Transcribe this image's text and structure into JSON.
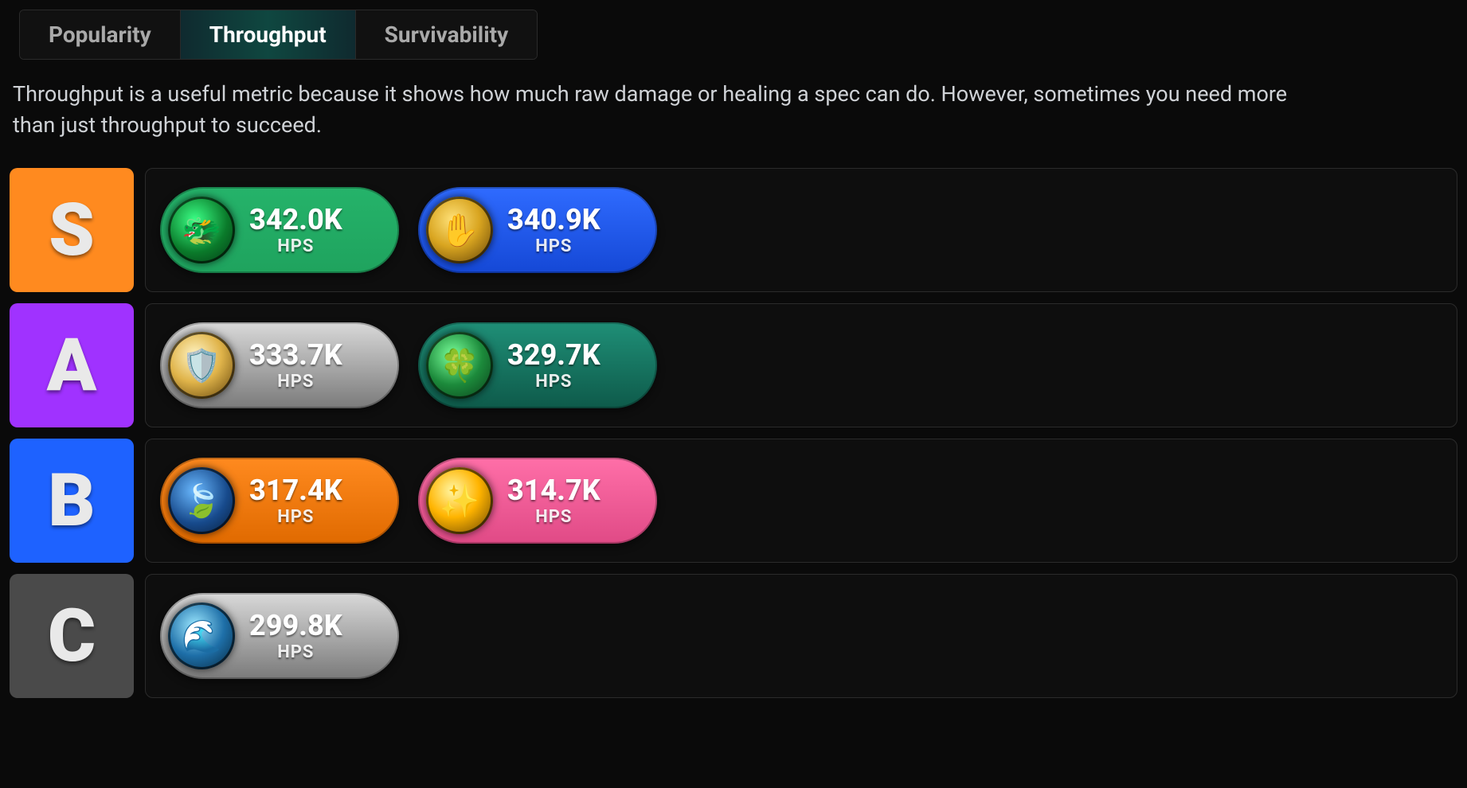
{
  "tabs": [
    {
      "label": "Popularity",
      "active": false
    },
    {
      "label": "Throughput",
      "active": true
    },
    {
      "label": "Survivability",
      "active": false
    }
  ],
  "description": "Throughput is a useful metric because it shows how much raw damage or healing a spec can do. However, sometimes you need more than just throughput to succeed.",
  "unit_label": "HPS",
  "tier_styles": {
    "S": {
      "bg": "#ff8a1f"
    },
    "A": {
      "bg": "#a032ff"
    },
    "B": {
      "bg": "#1e62ff"
    },
    "C": {
      "bg": "#4a4a4a"
    }
  },
  "tiers": [
    {
      "label": "S",
      "specs": [
        {
          "name": "preservation-evoker",
          "value": "342.0K",
          "pill_gradient": [
            "#25b36a",
            "#1fa35e"
          ],
          "icon_bg": "radial-gradient(circle at 40% 35%, #3bff86 0%, #0a7a2a 55%, #053414 100%)",
          "icon_glyph": "🐲"
        },
        {
          "name": "holy-paladin",
          "value": "340.9K",
          "pill_gradient": [
            "#2f6bff",
            "#1548d6"
          ],
          "icon_bg": "radial-gradient(circle at 40% 35%, #ffe27a 0%, #d9a520 45%, #5a3b05 100%)",
          "icon_glyph": "✋"
        }
      ]
    },
    {
      "label": "A",
      "specs": [
        {
          "name": "discipline-priest",
          "value": "333.7K",
          "pill_gradient": [
            "#d9d9d9",
            "#7a7a7a"
          ],
          "icon_bg": "radial-gradient(circle at 40% 35%, #fff4c4 0%, #e0b44a 45%, #5a3b05 100%)",
          "icon_glyph": "🛡️"
        },
        {
          "name": "mistweaver-monk",
          "value": "329.7K",
          "pill_gradient": [
            "#1f8f77",
            "#0e5a4a"
          ],
          "icon_bg": "radial-gradient(circle at 40% 35%, #7aff9a 0%, #1c8a3b 50%, #0a3b18 100%)",
          "icon_glyph": "🍀"
        }
      ]
    },
    {
      "label": "B",
      "specs": [
        {
          "name": "restoration-druid",
          "value": "317.4K",
          "pill_gradient": [
            "#ff8a1f",
            "#e06a00"
          ],
          "icon_bg": "radial-gradient(circle at 40% 35%, #6ab9ff 0%, #174a8c 55%, #071a33 100%)",
          "icon_glyph": "🍃"
        },
        {
          "name": "holy-priest",
          "value": "314.7K",
          "pill_gradient": [
            "#ff6fa8",
            "#e04a86"
          ],
          "icon_bg": "radial-gradient(circle at 40% 35%, #fff7a6 0%, #ffb400 45%, #5a3b05 100%)",
          "icon_glyph": "✨"
        }
      ]
    },
    {
      "label": "C",
      "specs": [
        {
          "name": "restoration-shaman",
          "value": "299.8K",
          "pill_gradient": [
            "#d9d9d9",
            "#7a7a7a"
          ],
          "icon_bg": "radial-gradient(circle at 40% 35%, #9be7ff 0%, #1e6fa8 50%, #062338 100%)",
          "icon_glyph": "🌊"
        }
      ]
    }
  ]
}
